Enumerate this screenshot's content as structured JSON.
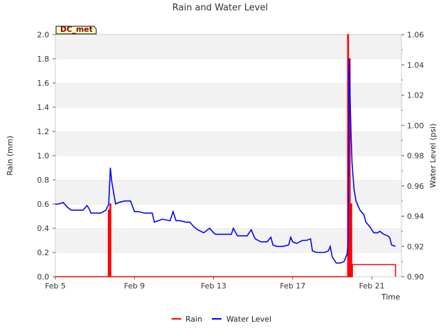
{
  "chart_data": {
    "type": "line",
    "title": "Rain and Water Level",
    "site_label": "DC_met",
    "xlabel": "Time",
    "ylabel_left": "Rain (mm)",
    "ylabel_right": "Water Level (psi)",
    "x_unit": "days since Feb 5",
    "xlim": [
      0,
      17.5
    ],
    "ylim_left": [
      0.0,
      2.0
    ],
    "ylim_right": [
      0.9,
      1.06
    ],
    "x_ticks": [
      {
        "x": 0,
        "label": "Feb 5"
      },
      {
        "x": 4,
        "label": "Feb 9"
      },
      {
        "x": 8,
        "label": "Feb 13"
      },
      {
        "x": 12,
        "label": "Feb 17"
      },
      {
        "x": 16,
        "label": "Feb 21"
      }
    ],
    "y_ticks_left": [
      "0.0",
      "0.2",
      "0.4",
      "0.6",
      "0.8",
      "1.0",
      "1.2",
      "1.4",
      "1.6",
      "1.8",
      "2.0"
    ],
    "y_ticks_right": [
      "0.90",
      "0.92",
      "0.94",
      "0.96",
      "0.98",
      "1.00",
      "1.02",
      "1.04",
      "1.06"
    ],
    "colors": {
      "rain": "#ff0000",
      "water": "#0000ff",
      "band": "#f2f2f2",
      "grid": "#ffffff"
    },
    "legend": {
      "position": "bottom-center"
    },
    "series": [
      {
        "name": "Rain",
        "axis": "left",
        "x": [
          0.0,
          2.65,
          2.68,
          2.72,
          2.76,
          2.8,
          14.75,
          14.78,
          14.82,
          14.86,
          14.9,
          14.94,
          14.98,
          15.02,
          17.2
        ],
        "values": [
          0.0,
          0.0,
          0.55,
          0.0,
          0.6,
          0.0,
          0.0,
          2.0,
          0.0,
          1.8,
          0.0,
          0.6,
          0.0,
          0.1,
          0.0
        ]
      },
      {
        "name": "Water Level",
        "axis": "right",
        "x": [
          0.0,
          0.15,
          0.4,
          0.6,
          0.8,
          1.0,
          1.4,
          1.6,
          1.7,
          1.8,
          2.0,
          2.3,
          2.55,
          2.7,
          2.78,
          2.85,
          2.95,
          3.05,
          3.2,
          3.5,
          3.8,
          4.0,
          4.2,
          4.5,
          4.9,
          5.0,
          5.2,
          5.4,
          5.8,
          5.95,
          6.1,
          6.3,
          6.6,
          6.8,
          7.0,
          7.2,
          7.5,
          7.8,
          8.0,
          8.1,
          8.4,
          8.6,
          8.9,
          9.0,
          9.2,
          9.4,
          9.7,
          9.9,
          10.1,
          10.4,
          10.7,
          10.9,
          11.0,
          11.2,
          11.5,
          11.8,
          11.9,
          12.0,
          12.2,
          12.5,
          12.7,
          12.9,
          13.0,
          13.2,
          13.4,
          13.6,
          13.8,
          13.9,
          14.0,
          14.2,
          14.4,
          14.6,
          14.75,
          14.8,
          14.85,
          14.9,
          14.95,
          15.0,
          15.1,
          15.2,
          15.4,
          15.6,
          15.7,
          15.9,
          16.1,
          16.3,
          16.4,
          16.6,
          16.8,
          16.9,
          17.0,
          17.2
        ],
        "values": [
          0.948,
          0.948,
          0.949,
          0.946,
          0.944,
          0.944,
          0.944,
          0.947,
          0.945,
          0.942,
          0.942,
          0.942,
          0.944,
          0.948,
          0.972,
          0.963,
          0.955,
          0.948,
          0.949,
          0.95,
          0.95,
          0.943,
          0.943,
          0.942,
          0.942,
          0.936,
          0.937,
          0.938,
          0.937,
          0.943,
          0.937,
          0.937,
          0.936,
          0.936,
          0.933,
          0.931,
          0.929,
          0.932,
          0.929,
          0.928,
          0.928,
          0.928,
          0.928,
          0.932,
          0.927,
          0.927,
          0.927,
          0.931,
          0.925,
          0.923,
          0.923,
          0.926,
          0.921,
          0.92,
          0.92,
          0.921,
          0.926,
          0.923,
          0.922,
          0.924,
          0.924,
          0.925,
          0.917,
          0.916,
          0.916,
          0.916,
          0.917,
          0.92,
          0.913,
          0.909,
          0.909,
          0.91,
          0.915,
          0.922,
          1.044,
          1.02,
          0.995,
          0.975,
          0.958,
          0.95,
          0.944,
          0.941,
          0.936,
          0.933,
          0.929,
          0.929,
          0.93,
          0.928,
          0.927,
          0.926,
          0.921,
          0.92
        ]
      }
    ]
  }
}
